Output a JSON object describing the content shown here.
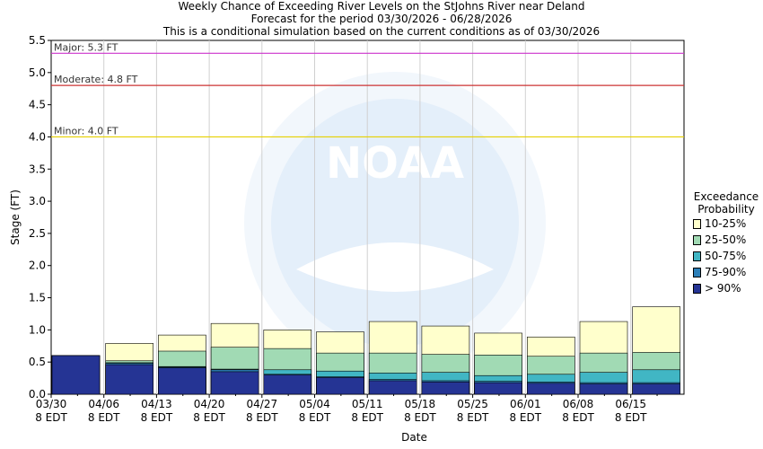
{
  "title": {
    "line1": "Weekly Chance of Exceeding River Levels on the StJohns River near Deland",
    "line2": "Forecast for the period 03/30/2026 - 06/28/2026",
    "line3": "This is a conditional simulation based on the current conditions as of 03/30/2026"
  },
  "watermark": {
    "logo_text": "NOAA"
  },
  "legend": {
    "title_line1": "Exceedance",
    "title_line2": "Probability",
    "items": [
      {
        "label": "10-25%",
        "color": "#ffffcc"
      },
      {
        "label": "25-50%",
        "color": "#a1dab4"
      },
      {
        "label": "50-75%",
        "color": "#41b6c4"
      },
      {
        "label": "75-90%",
        "color": "#2c7fb8"
      },
      {
        "label": "> 90%",
        "color": "#253494"
      }
    ]
  },
  "chart_data": {
    "type": "bar",
    "xlabel": "Date",
    "ylabel": "Stage (FT)",
    "ylim": [
      0,
      5.5
    ],
    "yticks": [
      "0.0",
      "0.5",
      "1.0",
      "1.5",
      "2.0",
      "2.5",
      "3.0",
      "3.5",
      "4.0",
      "4.5",
      "5.0",
      "5.5"
    ],
    "categories": [
      [
        "03/30",
        "8 EDT"
      ],
      [
        "04/06",
        "8 EDT"
      ],
      [
        "04/13",
        "8 EDT"
      ],
      [
        "04/20",
        "8 EDT"
      ],
      [
        "04/27",
        "8 EDT"
      ],
      [
        "05/04",
        "8 EDT"
      ],
      [
        "05/11",
        "8 EDT"
      ],
      [
        "05/18",
        "8 EDT"
      ],
      [
        "05/25",
        "8 EDT"
      ],
      [
        "06/01",
        "8 EDT"
      ],
      [
        "06/08",
        "8 EDT"
      ],
      [
        "06/15",
        "8 EDT"
      ]
    ],
    "series": [
      {
        "name": "> 90%",
        "color": "#253494",
        "values": [
          0.6,
          0.46,
          0.41,
          0.35,
          0.3,
          0.26,
          0.21,
          0.19,
          0.18,
          0.17,
          0.16,
          0.16
        ]
      },
      {
        "name": "75-90%",
        "color": "#2c7fb8",
        "values": [
          0.6,
          0.48,
          0.42,
          0.38,
          0.31,
          0.27,
          0.23,
          0.21,
          0.2,
          0.19,
          0.18,
          0.18
        ]
      },
      {
        "name": "50-75%",
        "color": "#41b6c4",
        "values": [
          0.6,
          0.49,
          0.43,
          0.39,
          0.38,
          0.36,
          0.33,
          0.34,
          0.29,
          0.31,
          0.34,
          0.38
        ]
      },
      {
        "name": "25-50%",
        "color": "#a1dab4",
        "values": [
          0.6,
          0.52,
          0.67,
          0.73,
          0.71,
          0.64,
          0.64,
          0.62,
          0.61,
          0.59,
          0.64,
          0.65
        ]
      },
      {
        "name": "10-25%",
        "color": "#ffffcc",
        "values": [
          0.6,
          0.79,
          0.92,
          1.1,
          1.0,
          0.97,
          1.13,
          1.06,
          0.95,
          0.89,
          1.13,
          1.36
        ]
      }
    ],
    "thresholds": [
      {
        "label": "Major: 5.3 FT",
        "value": 5.3,
        "color": "#cc33cc"
      },
      {
        "label": "Moderate: 4.8 FT",
        "value": 4.8,
        "color": "#cc3333"
      },
      {
        "label": "Minor: 4.0 FT",
        "value": 4.0,
        "color": "#e6d000"
      }
    ],
    "grid": "vertical"
  }
}
